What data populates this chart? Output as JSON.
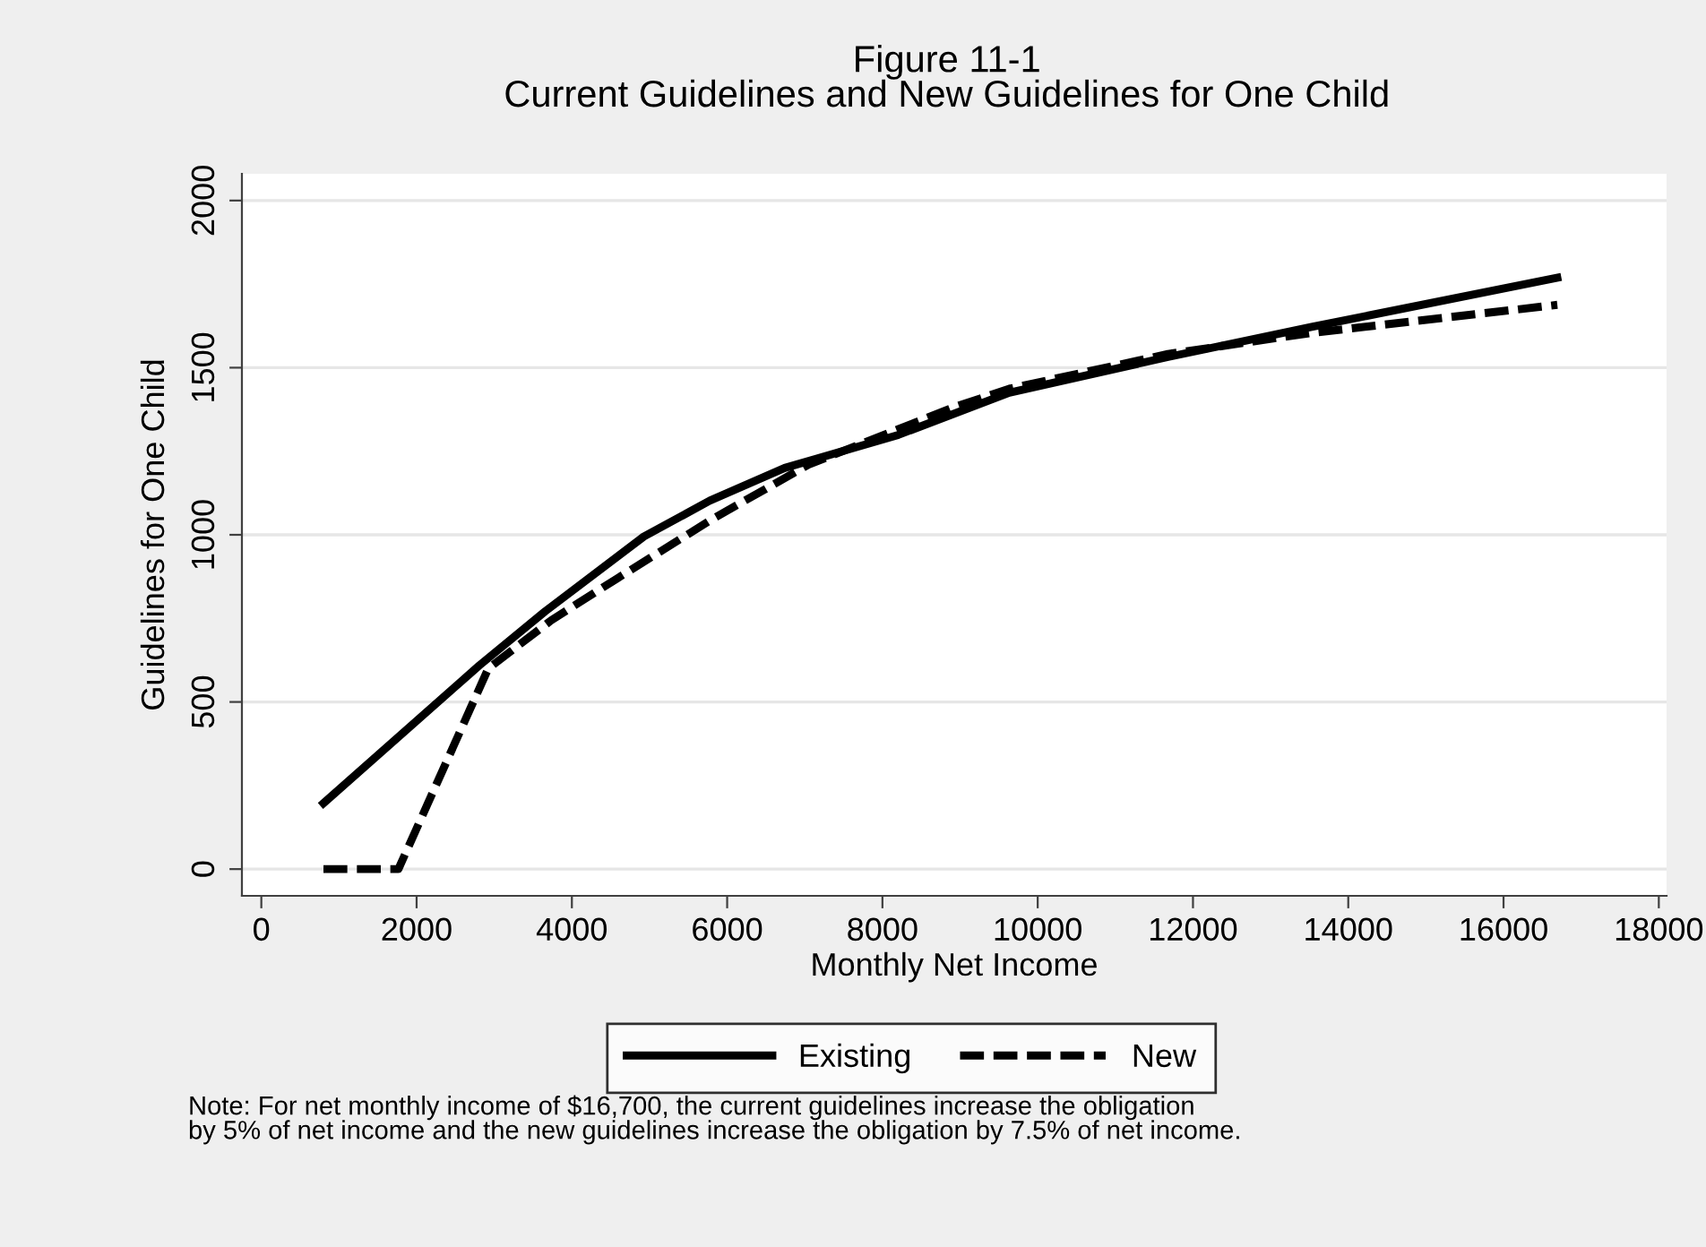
{
  "chart_data": {
    "type": "line",
    "title": "Figure 11-1\nCurrent Guidelines and New Guidelines for One Child",
    "xlabel": "Monthly Net Income",
    "ylabel": "Guidelines for One Child",
    "series": [
      {
        "name": "Existing",
        "color": "#000000",
        "line_style": "solid",
        "x": [
          800,
          2807,
          3655,
          4928,
          5776,
          6741,
          8206,
          9634,
          11678,
          13529,
          16693
        ],
        "values": [
          197,
          609,
          771,
          995,
          1102,
          1200,
          1299,
          1425,
          1532,
          1622,
          1769
        ]
      },
      {
        "name": "New",
        "color": "#000000",
        "line_style": "dashed",
        "x": [
          800,
          1766,
          2923,
          3733,
          4580,
          5815,
          7049,
          8900,
          9634,
          11678,
          13529,
          16693
        ],
        "values": [
          0,
          0,
          600,
          744,
          869,
          1048,
          1210,
          1380,
          1437,
          1541,
          1604,
          1688
        ]
      }
    ],
    "xlim": [
      -250,
      18100
    ],
    "ylim": [
      -80,
      2080
    ],
    "xticks": [
      0,
      2000,
      4000,
      6000,
      8000,
      10000,
      12000,
      14000,
      16000,
      18000
    ],
    "yticks": [
      0,
      500,
      1000,
      1500,
      2000
    ],
    "grid": "y",
    "legend": "bottom",
    "annotations": [
      "Note: For net monthly income of $16,700, the current guidelines increase the obligation\nby 5% of net income and the new guidelines increase the obligation by 7.5% of net income."
    ]
  }
}
